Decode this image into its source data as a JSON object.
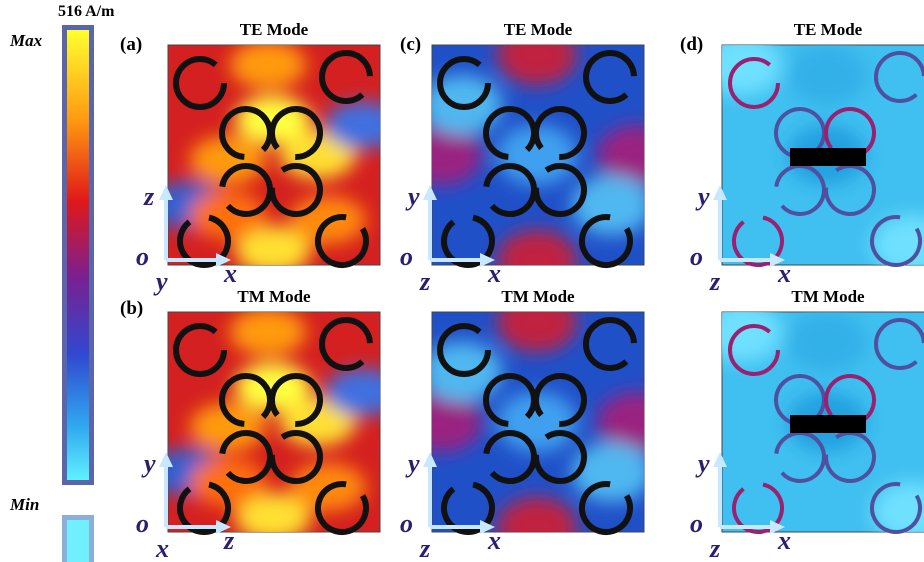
{
  "colorbar": {
    "unit_label": "516 A/m",
    "max": "Max",
    "min": "Min"
  },
  "panels": [
    {
      "label": "(a)",
      "title": "TE Mode",
      "axes": {
        "vertical": "z",
        "origin": "o",
        "out": "y",
        "horizontal": "x"
      }
    },
    {
      "label": "(b)",
      "title": "TM Mode",
      "axes": {
        "vertical": "y",
        "origin": "o",
        "out": "x",
        "horizontal": "z"
      }
    },
    {
      "label": "(c)",
      "title": "TE Mode",
      "axes": {
        "vertical": "y",
        "origin": "o",
        "out": "z",
        "horizontal": "x"
      }
    },
    {
      "title": "TM Mode",
      "axes": {
        "vertical": "y",
        "origin": "o",
        "out": "z",
        "horizontal": "x"
      }
    },
    {
      "label": "(d)",
      "title": "TE Mode",
      "axes": {
        "vertical": "y",
        "origin": "o",
        "out": "z",
        "horizontal": "x"
      }
    },
    {
      "title": "TM Mode",
      "axes": {
        "vertical": "y",
        "origin": "o",
        "out": "z",
        "horizontal": "x"
      }
    }
  ]
}
